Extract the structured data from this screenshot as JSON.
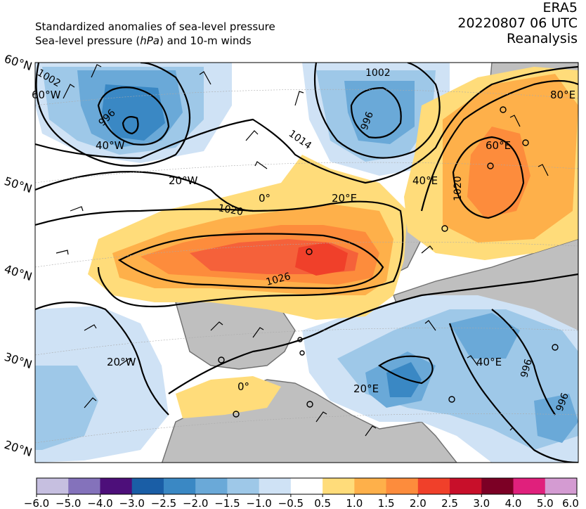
{
  "header": {
    "title_line1": "Standardized anomalies of sea-level pressure",
    "title_line2_pre": "Sea-level pressure (",
    "title_line2_unit": "hPa",
    "title_line2_post": ") and 10-m winds",
    "source": "ERA5",
    "datetime": "20220807 06 UTC",
    "product": "Reanalysis"
  },
  "map": {
    "lat_labels": [
      "60°N",
      "50°N",
      "40°N",
      "30°N",
      "20°N"
    ],
    "lon_labels": [
      "60°W",
      "40°W",
      "20°W",
      "0°",
      "20°E",
      "40°E",
      "60°E",
      "80°E",
      "20°W",
      "0°",
      "20°E",
      "40°E"
    ],
    "isobar_labels": [
      "1002",
      "996",
      "1002",
      "996",
      "1014",
      "1020",
      "1020",
      "1026",
      "996",
      "996"
    ],
    "colors": {
      "land_gray": "#bfbfbf",
      "coast": "#6f6f6f",
      "contour": "#000000"
    }
  },
  "colorbar": {
    "ticks": [
      "−6.0",
      "−5.0",
      "−4.0",
      "−3.0",
      "−2.5",
      "−2.0",
      "−1.5",
      "−1.0",
      "−0.5",
      "0.5",
      "1.0",
      "1.5",
      "2.0",
      "2.5",
      "3.0",
      "4.0",
      "5.0",
      "6.0"
    ],
    "colors": [
      "#c6bfe0",
      "#8472bb",
      "#4d0f7a",
      "#1a5ea6",
      "#3a88c4",
      "#6aa9d8",
      "#9ec8e8",
      "#cfe2f5",
      "#ffffff",
      "#ffdc7a",
      "#feb04a",
      "#fd8c3c",
      "#f0402a",
      "#c80f2a",
      "#7c0025",
      "#e0207c",
      "#d49bd2"
    ]
  }
}
